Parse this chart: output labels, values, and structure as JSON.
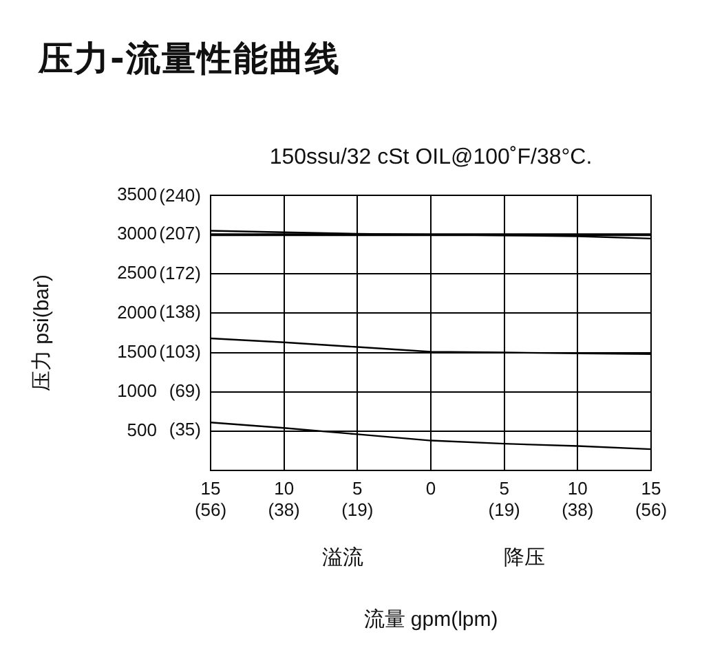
{
  "chart_data": {
    "type": "line",
    "title": "压力-流量性能曲线",
    "subtitle": "150ssu/32 cSt OIL@100˚F/38°C.",
    "xlabel": "流量 gpm(lpm)",
    "ylabel": "压力 psi(bar)",
    "annotations": [
      "溢流",
      "降压"
    ],
    "categories": [
      "15\n(56)",
      "10\n(38)",
      "5\n(19)",
      "0",
      "5\n(19)",
      "10\n(38)",
      "15\n(56)"
    ],
    "series": [
      {
        "color": "#000000",
        "values": [
          3050,
          3030,
          3010,
          3000,
          2990,
          2980,
          2950
        ]
      },
      {
        "color": "#000000",
        "values": [
          3000,
          3000,
          3000,
          3000,
          3000,
          3000,
          3000
        ]
      },
      {
        "color": "#000000",
        "values": [
          1680,
          1630,
          1570,
          1510,
          1500,
          1490,
          1480
        ]
      },
      {
        "color": "#000000",
        "values": [
          610,
          540,
          460,
          380,
          340,
          310,
          270
        ]
      }
    ],
    "ylim": [
      0,
      3500
    ],
    "yticks": [
      500,
      1000,
      1500,
      2000,
      2500,
      3000,
      3500
    ],
    "y2lim": [
      0,
      241
    ],
    "y2ticks": [
      {
        "value": 35,
        "label": "(35)"
      },
      {
        "value": 69,
        "label": "(69)"
      },
      {
        "value": 103,
        "label": "(103)"
      },
      {
        "value": 138,
        "label": "(138)"
      },
      {
        "value": 172,
        "label": "(172)"
      },
      {
        "value": 207,
        "label": "(207)"
      },
      {
        "value": 240,
        "label": "(240)"
      }
    ],
    "grid": true,
    "legend": false,
    "marker": "none",
    "line_style": "solid"
  }
}
